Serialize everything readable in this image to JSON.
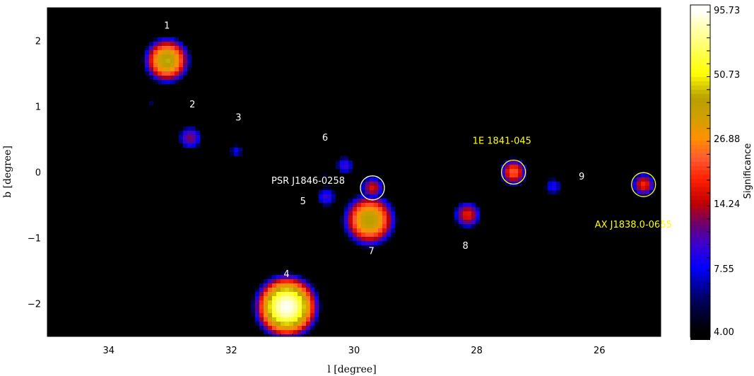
{
  "chart_data": {
    "type": "heatmap",
    "title": "",
    "xlabel": "l [degree]",
    "ylabel": "b [degree]",
    "xlim": [
      35,
      25
    ],
    "ylim": [
      -2.5,
      2.5
    ],
    "x_ticks": [
      34,
      32,
      30,
      28,
      26
    ],
    "y_ticks": [
      2,
      1,
      0,
      -1,
      -2
    ],
    "x_tick_labels": [
      "34",
      "32",
      "30",
      "28",
      "26"
    ],
    "y_tick_labels": [
      "2",
      "1",
      "0",
      "−1",
      "−2"
    ],
    "background_color": "#000000",
    "colorbar": {
      "label": "Significance",
      "tick_values": [
        95.73,
        50.73,
        26.88,
        14.24,
        7.55,
        4.0
      ],
      "tick_labels": [
        "95.73",
        "50.73",
        "26.88",
        "14.24",
        "7.55",
        "4.00"
      ],
      "stops": [
        {
          "value": 4.0,
          "color": "#000000"
        },
        {
          "value": 5.5,
          "color": "#000060"
        },
        {
          "value": 7.55,
          "color": "#0000ff"
        },
        {
          "value": 9.5,
          "color": "#3c00d0"
        },
        {
          "value": 11.5,
          "color": "#6a0070"
        },
        {
          "value": 14.24,
          "color": "#c00000"
        },
        {
          "value": 18.0,
          "color": "#ff2000"
        },
        {
          "value": 22.0,
          "color": "#ff5a30"
        },
        {
          "value": 26.88,
          "color": "#ff9000"
        },
        {
          "value": 33.0,
          "color": "#d0a000"
        },
        {
          "value": 40.0,
          "color": "#b8a000"
        },
        {
          "value": 50.73,
          "color": "#ffff00"
        },
        {
          "value": 70.0,
          "color": "#ffff80"
        },
        {
          "value": 95.73,
          "color": "#ffffff"
        }
      ]
    },
    "sources": [
      {
        "label": "1",
        "l": 33.05,
        "b": 1.7,
        "peak": 42,
        "size": 0.19
      },
      {
        "label": "2",
        "l": 32.67,
        "b": 0.52,
        "peak": 12,
        "size": 0.14
      },
      {
        "label": "3",
        "l": 31.92,
        "b": 0.32,
        "peak": 8,
        "size": 0.09
      },
      {
        "label": "4",
        "l": 31.1,
        "b": -2.05,
        "peak": 95,
        "size": 0.23
      },
      {
        "label": "5",
        "l": 30.45,
        "b": -0.38,
        "peak": 9.5,
        "size": 0.13
      },
      {
        "label": "6",
        "l": 30.15,
        "b": 0.1,
        "peak": 9.5,
        "size": 0.12
      },
      {
        "label": "7",
        "l": 29.75,
        "b": -0.73,
        "peak": 40,
        "size": 0.22
      },
      {
        "label": "8",
        "l": 28.15,
        "b": -0.65,
        "peak": 17,
        "size": 0.14
      },
      {
        "label": "9",
        "l": 26.75,
        "b": -0.22,
        "peak": 8.5,
        "size": 0.12
      },
      {
        "label": "",
        "l": 33.3,
        "b": 1.07,
        "peak": 6,
        "size": 0.05
      },
      {
        "label": "",
        "l": 30.5,
        "b": -0.05,
        "peak": 5.5,
        "size": 0.05
      }
    ],
    "circled_sources": [
      {
        "label": "PSR J1846-0258",
        "l": 29.7,
        "b": -0.24,
        "peak": 16,
        "size": 0.12,
        "label_color": "#ffffff"
      },
      {
        "label": "1E 1841-045",
        "l": 27.4,
        "b": 0.0,
        "peak": 22,
        "size": 0.13,
        "label_color": "#ffff00"
      },
      {
        "label": "AX J1838.0-0655",
        "l": 25.28,
        "b": -0.19,
        "peak": 18,
        "size": 0.12,
        "label_color": "#ffff00"
      }
    ]
  }
}
